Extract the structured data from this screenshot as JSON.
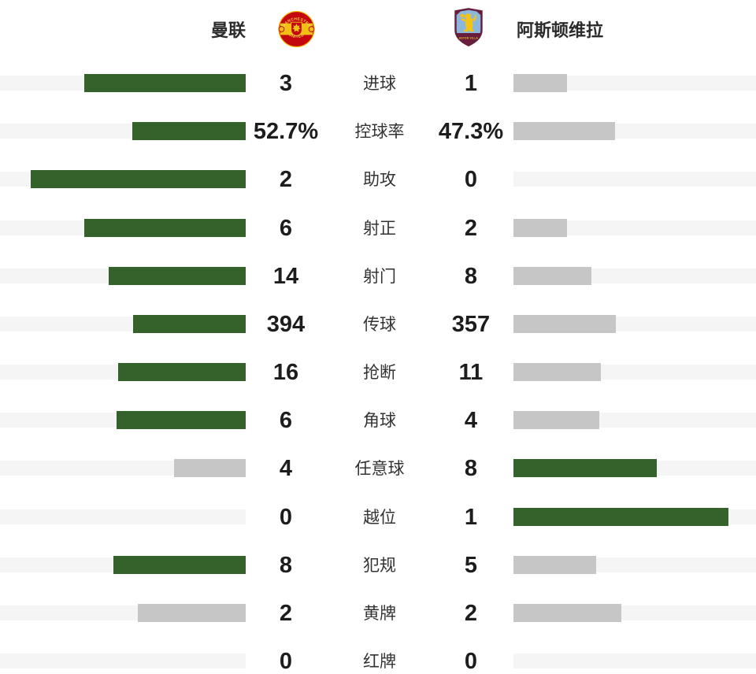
{
  "header": {
    "home_team": "曼联",
    "away_team": "阿斯顿维拉",
    "home_crest_text_top": "MANCHESTER",
    "home_crest_text_bottom": "UNITED",
    "away_crest_text": "ASTON VILLA"
  },
  "colors": {
    "leader_bar": "#35612b",
    "trailer_bar": "#c6c6c6",
    "track": "#f5f5f5",
    "value_text": "#1d1d1d",
    "label_text": "#333333",
    "mu_red": "#c3080f",
    "mu_gold": "#f2c014",
    "villa_claret": "#671e3d",
    "villa_blue": "#8cb7dd",
    "villa_gold": "#f3c318"
  },
  "chart_data": {
    "type": "bar",
    "orientation": "horizontal-mirrored",
    "categories": [
      "进球",
      "控球率",
      "助攻",
      "射正",
      "射门",
      "传球",
      "抢断",
      "角球",
      "任意球",
      "越位",
      "犯规",
      "黄牌",
      "红牌"
    ],
    "series": [
      {
        "name": "曼联",
        "values": [
          "3",
          "52.7%",
          "2",
          "6",
          "14",
          "394",
          "16",
          "6",
          "4",
          "0",
          "8",
          "2",
          "0"
        ]
      },
      {
        "name": "阿斯顿维拉",
        "values": [
          "1",
          "47.3%",
          "0",
          "2",
          "8",
          "357",
          "11",
          "4",
          "8",
          "1",
          "5",
          "2",
          "0"
        ]
      }
    ],
    "layout": {
      "legend_position": "top",
      "grid": false,
      "bar_rule": "per-row widths proportional to each side's share of the row total; row leader colored green, trailer gray, ties both gray, zero values no bar"
    }
  }
}
